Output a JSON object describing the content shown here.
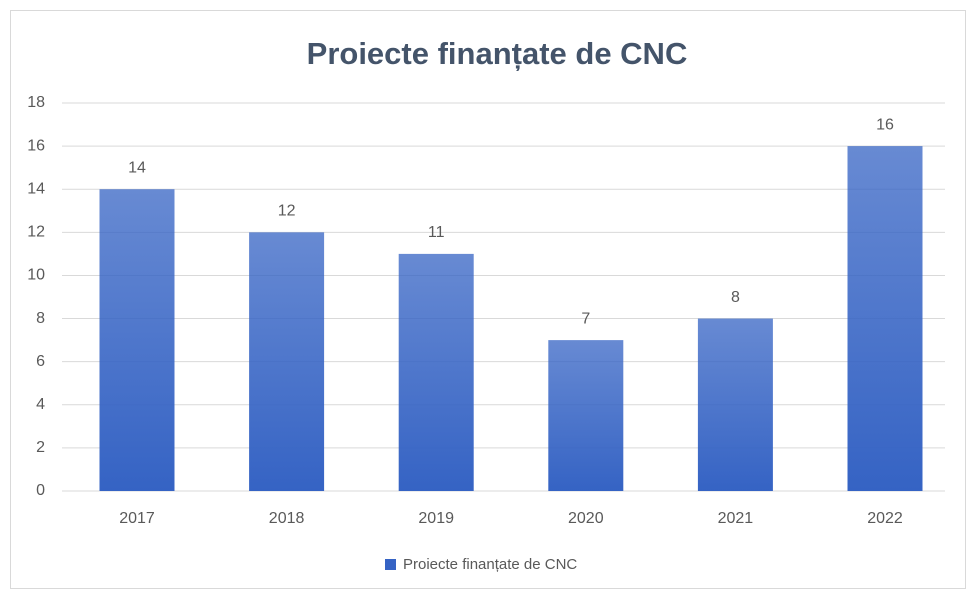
{
  "chart_data": {
    "type": "bar",
    "title": "Proiecte finanțate de CNC",
    "categories": [
      "2017",
      "2018",
      "2019",
      "2020",
      "2021",
      "2022"
    ],
    "series": [
      {
        "name": "Proiecte finanțate de CNC",
        "color": "#3563c4",
        "values": [
          14,
          12,
          11,
          7,
          8,
          16
        ]
      }
    ],
    "ylim": [
      0,
      18
    ],
    "yticks": [
      0,
      2,
      4,
      6,
      8,
      10,
      12,
      14,
      16,
      18
    ],
    "grid": true,
    "legend": "bottom"
  }
}
